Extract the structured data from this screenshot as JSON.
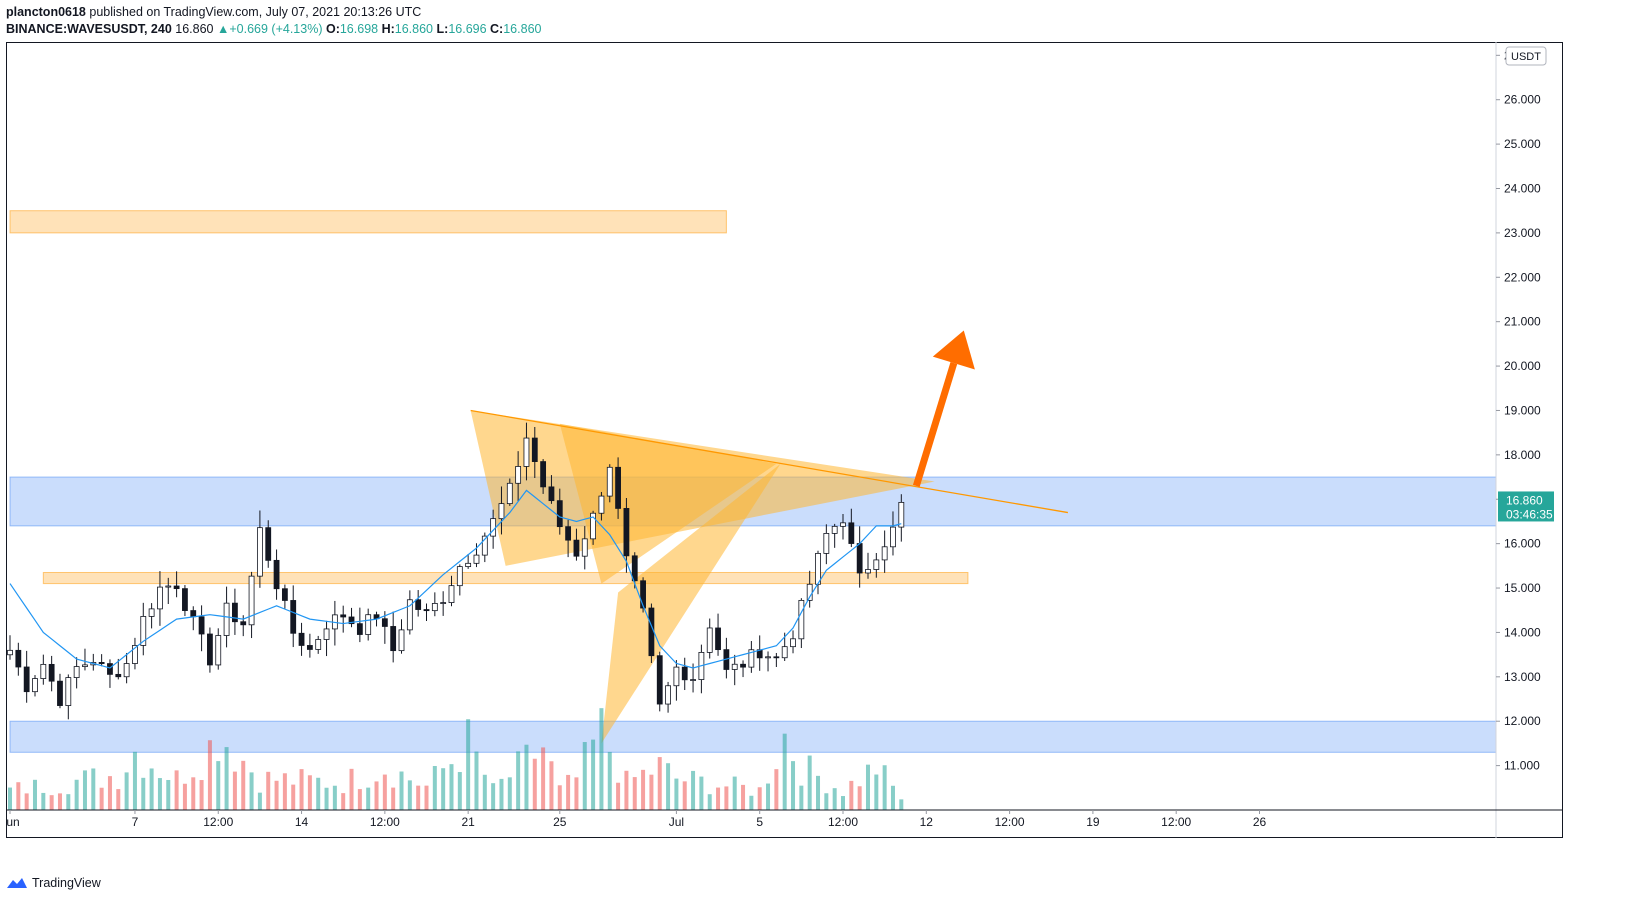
{
  "header": {
    "author": "plancton0618",
    "published_text": "published on TradingView.com, July 07, 2021 20:13:26 UTC",
    "symbol": "BINANCE:WAVESUSDT, 240",
    "last": "16.860",
    "change": "+0.669 (+4.13%)",
    "open_label": "O:",
    "open": "16.698",
    "high_label": "H:",
    "high": "16.860",
    "low_label": "L:",
    "low": "16.696",
    "close_label": "C:",
    "close": "16.860"
  },
  "footer": {
    "brand": "TradingView"
  },
  "colors": {
    "up": "#26a69a",
    "down": "#ef5350",
    "candle_up_fill": "#ffffff",
    "candle_down_fill": "#131722",
    "ma": "#2196f3",
    "blue_zone": "rgba(66,133,244,0.28)",
    "orange_zone": "rgba(255,152,0,0.28)",
    "triangle": "rgba(255,183,50,0.55)",
    "trendline": "#ff9800",
    "arrow": "#ff6d00",
    "vol_up": "rgba(38,166,154,0.55)",
    "vol_down": "rgba(239,83,80,0.55)"
  },
  "chart_data": {
    "type": "candlestick",
    "price_scale": {
      "unit_badge": "USDT",
      "ticks": [
        "27.000",
        "26.000",
        "25.000",
        "24.000",
        "23.000",
        "22.000",
        "21.000",
        "20.000",
        "19.000",
        "18.000",
        "17.000",
        "16.000",
        "15.000",
        "14.000",
        "13.000",
        "12.000",
        "11.000"
      ],
      "ylim": [
        10.0,
        27.3
      ],
      "last_price": "16.860",
      "countdown": "03:46:35"
    },
    "time_scale": {
      "ticks": [
        "Jun",
        "7",
        "12:00",
        "14",
        "12:00",
        "21",
        "25",
        "Jul",
        "5",
        "12:00",
        "12",
        "12:00",
        "19",
        "12:00",
        "26"
      ],
      "tick_index": [
        0,
        15,
        25,
        35,
        45,
        55,
        66,
        80,
        90,
        100,
        110,
        120,
        130,
        140,
        150
      ]
    },
    "candles": {
      "count": 108,
      "anchors": [
        [
          0,
          13.6
        ],
        [
          2,
          12.8
        ],
        [
          4,
          13.3
        ],
        [
          6,
          12.5
        ],
        [
          8,
          13.2
        ],
        [
          10,
          13.4
        ],
        [
          12,
          13.0
        ],
        [
          14,
          13.3
        ],
        [
          16,
          14.3
        ],
        [
          18,
          15.0
        ],
        [
          20,
          15.1
        ],
        [
          22,
          14.2
        ],
        [
          24,
          13.4
        ],
        [
          26,
          14.5
        ],
        [
          28,
          14.2
        ],
        [
          30,
          16.3
        ],
        [
          32,
          15.1
        ],
        [
          34,
          14.0
        ],
        [
          36,
          13.6
        ],
        [
          38,
          14.2
        ],
        [
          40,
          14.4
        ],
        [
          42,
          14.1
        ],
        [
          44,
          14.4
        ],
        [
          46,
          13.6
        ],
        [
          48,
          14.7
        ],
        [
          50,
          14.4
        ],
        [
          52,
          14.8
        ],
        [
          54,
          15.5
        ],
        [
          56,
          15.9
        ],
        [
          58,
          16.5
        ],
        [
          60,
          17.2
        ],
        [
          62,
          18.4
        ],
        [
          64,
          17.3
        ],
        [
          66,
          16.4
        ],
        [
          68,
          15.8
        ],
        [
          70,
          16.6
        ],
        [
          72,
          17.8
        ],
        [
          74,
          15.6
        ],
        [
          76,
          14.4
        ],
        [
          78,
          12.3
        ],
        [
          80,
          13.2
        ],
        [
          82,
          13.0
        ],
        [
          84,
          14.2
        ],
        [
          86,
          13.1
        ],
        [
          88,
          13.3
        ],
        [
          90,
          13.6
        ],
        [
          92,
          13.4
        ],
        [
          94,
          14.0
        ],
        [
          96,
          15.1
        ],
        [
          98,
          16.2
        ],
        [
          100,
          16.6
        ],
        [
          102,
          15.2
        ],
        [
          104,
          15.8
        ],
        [
          106,
          16.3
        ],
        [
          107,
          16.86
        ]
      ]
    },
    "moving_average": {
      "name": "",
      "anchors": [
        [
          0,
          15.1
        ],
        [
          4,
          14.0
        ],
        [
          8,
          13.4
        ],
        [
          12,
          13.2
        ],
        [
          16,
          13.8
        ],
        [
          20,
          14.3
        ],
        [
          24,
          14.4
        ],
        [
          28,
          14.3
        ],
        [
          32,
          14.6
        ],
        [
          36,
          14.3
        ],
        [
          40,
          14.2
        ],
        [
          44,
          14.3
        ],
        [
          48,
          14.6
        ],
        [
          52,
          15.3
        ],
        [
          56,
          15.9
        ],
        [
          60,
          16.7
        ],
        [
          62,
          17.2
        ],
        [
          64,
          16.9
        ],
        [
          66,
          16.6
        ],
        [
          68,
          16.5
        ],
        [
          70,
          16.6
        ],
        [
          72,
          16.2
        ],
        [
          74,
          15.6
        ],
        [
          76,
          14.6
        ],
        [
          78,
          13.7
        ],
        [
          80,
          13.3
        ],
        [
          82,
          13.2
        ],
        [
          84,
          13.3
        ],
        [
          86,
          13.4
        ],
        [
          88,
          13.5
        ],
        [
          90,
          13.6
        ],
        [
          92,
          13.7
        ],
        [
          94,
          14.1
        ],
        [
          96,
          14.8
        ],
        [
          98,
          15.4
        ],
        [
          100,
          15.7
        ],
        [
          102,
          16.0
        ],
        [
          104,
          16.4
        ],
        [
          106,
          16.4
        ],
        [
          107,
          16.45
        ]
      ]
    },
    "zones": [
      {
        "kind": "blue",
        "y": [
          16.4,
          17.5
        ],
        "x_start_index": 0,
        "extends": "right"
      },
      {
        "kind": "blue",
        "y": [
          11.3,
          12.0
        ],
        "x_start_index": 0,
        "extends": "right"
      },
      {
        "kind": "orange",
        "y": [
          23.0,
          23.5
        ],
        "x_range": [
          0,
          86
        ]
      },
      {
        "kind": "orange",
        "y": [
          15.1,
          15.35
        ],
        "x_range": [
          4,
          115
        ]
      }
    ],
    "triangles": [
      [
        [
          55.3,
          19.0
        ],
        [
          59.5,
          15.5
        ],
        [
          111.0,
          17.4
        ]
      ],
      [
        [
          66,
          18.7
        ],
        [
          71,
          15.1
        ],
        [
          92.0,
          17.8
        ]
      ],
      [
        [
          73,
          14.9
        ],
        [
          71,
          11.5
        ],
        [
          92.5,
          17.8
        ]
      ]
    ],
    "trendline": {
      "from": [
        55.3,
        19.0
      ],
      "to": [
        127,
        16.7
      ]
    },
    "arrow": {
      "from": [
        108.8,
        17.3
      ],
      "to": [
        114.5,
        20.8
      ]
    },
    "volume": {
      "anchors": [
        [
          0,
          0.25
        ],
        [
          13,
          0.45
        ],
        [
          15,
          0.75
        ],
        [
          20,
          0.4
        ],
        [
          24,
          0.8
        ],
        [
          25,
          1.0
        ],
        [
          30,
          0.4
        ],
        [
          40,
          0.35
        ],
        [
          45,
          0.55
        ],
        [
          50,
          0.3
        ],
        [
          55,
          0.85
        ],
        [
          58,
          0.25
        ],
        [
          64,
          0.8
        ],
        [
          66,
          0.25
        ],
        [
          68,
          0.4
        ],
        [
          71,
          1.0
        ],
        [
          74,
          0.35
        ],
        [
          78,
          0.55
        ],
        [
          80,
          0.4
        ],
        [
          90,
          0.25
        ],
        [
          93,
          0.95
        ],
        [
          95,
          0.55
        ],
        [
          100,
          0.25
        ],
        [
          104,
          0.55
        ],
        [
          107,
          0.15
        ]
      ]
    }
  }
}
